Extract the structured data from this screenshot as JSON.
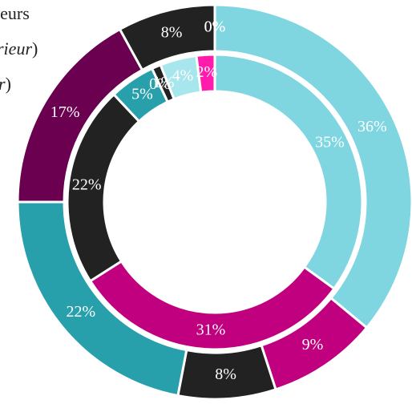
{
  "chart_data": {
    "type": "donut",
    "annotations": [
      {
        "text": "teurs"
      },
      {
        "italic": "rieur",
        "text": ")"
      },
      {
        "italic": "r",
        "text": ")"
      }
    ],
    "series": [
      {
        "values": [
          36,
          9,
          8,
          22,
          17,
          8,
          0,
          0
        ],
        "value_labels": [
          "36%",
          "9%",
          "8%",
          "22%",
          "17%",
          "8%",
          "0%",
          "0%"
        ],
        "colors": [
          "#7fd6e0",
          "#c0007f",
          "#222222",
          "#28a0ac",
          "#6b0050",
          "#222222",
          "#7fd6e0",
          "#ff1cac"
        ]
      },
      {
        "values": [
          35,
          31,
          22,
          5,
          0,
          1,
          4,
          2
        ],
        "value_labels": [
          "35%",
          "31%",
          "22%",
          "5%",
          "0%",
          "1%",
          "4%",
          "2%"
        ],
        "colors": [
          "#7fd6e0",
          "#c0007f",
          "#222222",
          "#28a0ac",
          "#6b0050",
          "#222222",
          "#a8e6ee",
          "#ff1cac"
        ]
      }
    ]
  }
}
